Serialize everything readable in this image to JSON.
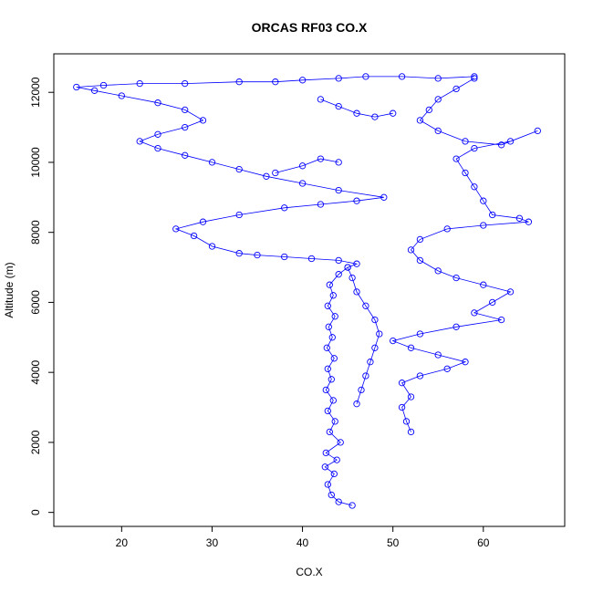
{
  "chart_data": {
    "type": "scatter",
    "title": "ORCAS RF03 CO.X",
    "xlabel": "CO.X",
    "ylabel": "Altitude (m)",
    "xlim": [
      12.5,
      69
    ],
    "ylim": [
      -400,
      13100
    ],
    "x_ticks": [
      20,
      30,
      40,
      50,
      60
    ],
    "y_ticks": [
      0,
      2000,
      4000,
      6000,
      8000,
      10000,
      12000
    ],
    "grid": false,
    "legend": "none",
    "point_style": "open-circle",
    "connected": true,
    "series": [
      {
        "color": "#0000ff",
        "points": [
          [
            45.5,
            200
          ],
          [
            44.0,
            300
          ],
          [
            43.2,
            500
          ],
          [
            42.8,
            800
          ],
          [
            43.5,
            1100
          ],
          [
            42.5,
            1300
          ],
          [
            43.8,
            1500
          ],
          [
            42.6,
            1700
          ],
          [
            44.2,
            2000
          ],
          [
            43.0,
            2300
          ],
          [
            43.6,
            2600
          ],
          [
            42.8,
            2900
          ],
          [
            43.4,
            3200
          ],
          [
            42.6,
            3500
          ],
          [
            43.2,
            3800
          ],
          [
            42.8,
            4100
          ],
          [
            43.5,
            4400
          ],
          [
            42.7,
            4700
          ],
          [
            43.3,
            5000
          ],
          [
            42.9,
            5300
          ],
          [
            43.6,
            5600
          ],
          [
            42.8,
            5900
          ],
          [
            43.4,
            6200
          ],
          [
            43.0,
            6500
          ],
          [
            44.0,
            6800
          ],
          [
            45.0,
            7000
          ],
          [
            46.0,
            7100
          ],
          [
            44.0,
            7200
          ],
          [
            41.0,
            7250
          ],
          [
            38.0,
            7300
          ],
          [
            35.0,
            7350
          ],
          [
            33.0,
            7400
          ],
          [
            30.0,
            7600
          ],
          [
            28.0,
            7900
          ],
          [
            26.0,
            8100
          ],
          [
            29.0,
            8300
          ],
          [
            33.0,
            8500
          ],
          [
            38.0,
            8700
          ],
          [
            42.0,
            8800
          ],
          [
            46.0,
            8900
          ],
          [
            49.0,
            9000
          ],
          [
            44.0,
            9200
          ],
          [
            40.0,
            9400
          ],
          [
            36.0,
            9600
          ],
          [
            33.0,
            9800
          ],
          [
            30.0,
            10000
          ],
          [
            27.0,
            10200
          ],
          [
            24.0,
            10400
          ],
          [
            22.0,
            10600
          ],
          [
            24.0,
            10800
          ],
          [
            27.0,
            11000
          ],
          [
            29.0,
            11200
          ],
          [
            27.0,
            11500
          ],
          [
            24.0,
            11700
          ],
          [
            20.0,
            11900
          ],
          [
            17.0,
            12050
          ],
          [
            15.0,
            12150
          ],
          [
            18.0,
            12200
          ],
          [
            22.0,
            12250
          ],
          [
            27.0,
            12250
          ],
          [
            33.0,
            12300
          ],
          [
            37.0,
            12300
          ],
          [
            40.0,
            12350
          ],
          [
            44.0,
            12400
          ],
          [
            47.0,
            12450
          ],
          [
            51.0,
            12450
          ],
          [
            55.0,
            12400
          ],
          [
            59.0,
            12450
          ]
        ]
      },
      {
        "color": "#0000ff",
        "points": [
          [
            59.0,
            12400
          ],
          [
            57.0,
            12100
          ],
          [
            55.0,
            11800
          ],
          [
            54.0,
            11500
          ],
          [
            53.0,
            11200
          ],
          [
            55.0,
            10900
          ],
          [
            58.0,
            10600
          ],
          [
            62.0,
            10500
          ],
          [
            66.0,
            10900
          ],
          [
            63.0,
            10600
          ],
          [
            59.0,
            10400
          ],
          [
            57.0,
            10100
          ],
          [
            58.0,
            9700
          ],
          [
            59.0,
            9300
          ],
          [
            60.0,
            8900
          ],
          [
            61.0,
            8500
          ],
          [
            64.0,
            8400
          ],
          [
            65.0,
            8300
          ],
          [
            60.0,
            8200
          ],
          [
            56.0,
            8100
          ],
          [
            53.0,
            7800
          ],
          [
            52.0,
            7500
          ],
          [
            53.0,
            7200
          ],
          [
            55.0,
            6900
          ],
          [
            57.0,
            6700
          ],
          [
            60.0,
            6500
          ],
          [
            63.0,
            6300
          ],
          [
            61.0,
            6000
          ],
          [
            59.0,
            5700
          ],
          [
            62.0,
            5500
          ],
          [
            57.0,
            5300
          ],
          [
            53.0,
            5100
          ],
          [
            50.0,
            4900
          ],
          [
            52.0,
            4700
          ],
          [
            55.0,
            4500
          ],
          [
            58.0,
            4300
          ],
          [
            56.0,
            4100
          ],
          [
            53.0,
            3900
          ],
          [
            51.0,
            3700
          ],
          [
            52.0,
            3300
          ],
          [
            51.0,
            3000
          ],
          [
            51.5,
            2600
          ],
          [
            52.0,
            2300
          ]
        ]
      },
      {
        "color": "#0000ff",
        "points": [
          [
            46.0,
            3100
          ],
          [
            46.5,
            3500
          ],
          [
            47.0,
            3900
          ],
          [
            47.5,
            4300
          ],
          [
            48.0,
            4700
          ],
          [
            48.5,
            5100
          ],
          [
            48.0,
            5500
          ],
          [
            47.0,
            5900
          ],
          [
            46.0,
            6300
          ],
          [
            45.5,
            6700
          ],
          [
            45.0,
            7000
          ]
        ]
      },
      {
        "color": "#0000ff",
        "points": [
          [
            42.0,
            11800
          ],
          [
            44.0,
            11600
          ],
          [
            46.0,
            11400
          ],
          [
            48.0,
            11300
          ],
          [
            50.0,
            11400
          ]
        ]
      },
      {
        "color": "#0000ff",
        "points": [
          [
            37.0,
            9700
          ],
          [
            40.0,
            9900
          ],
          [
            42.0,
            10100
          ],
          [
            44.0,
            10000
          ]
        ]
      }
    ]
  }
}
